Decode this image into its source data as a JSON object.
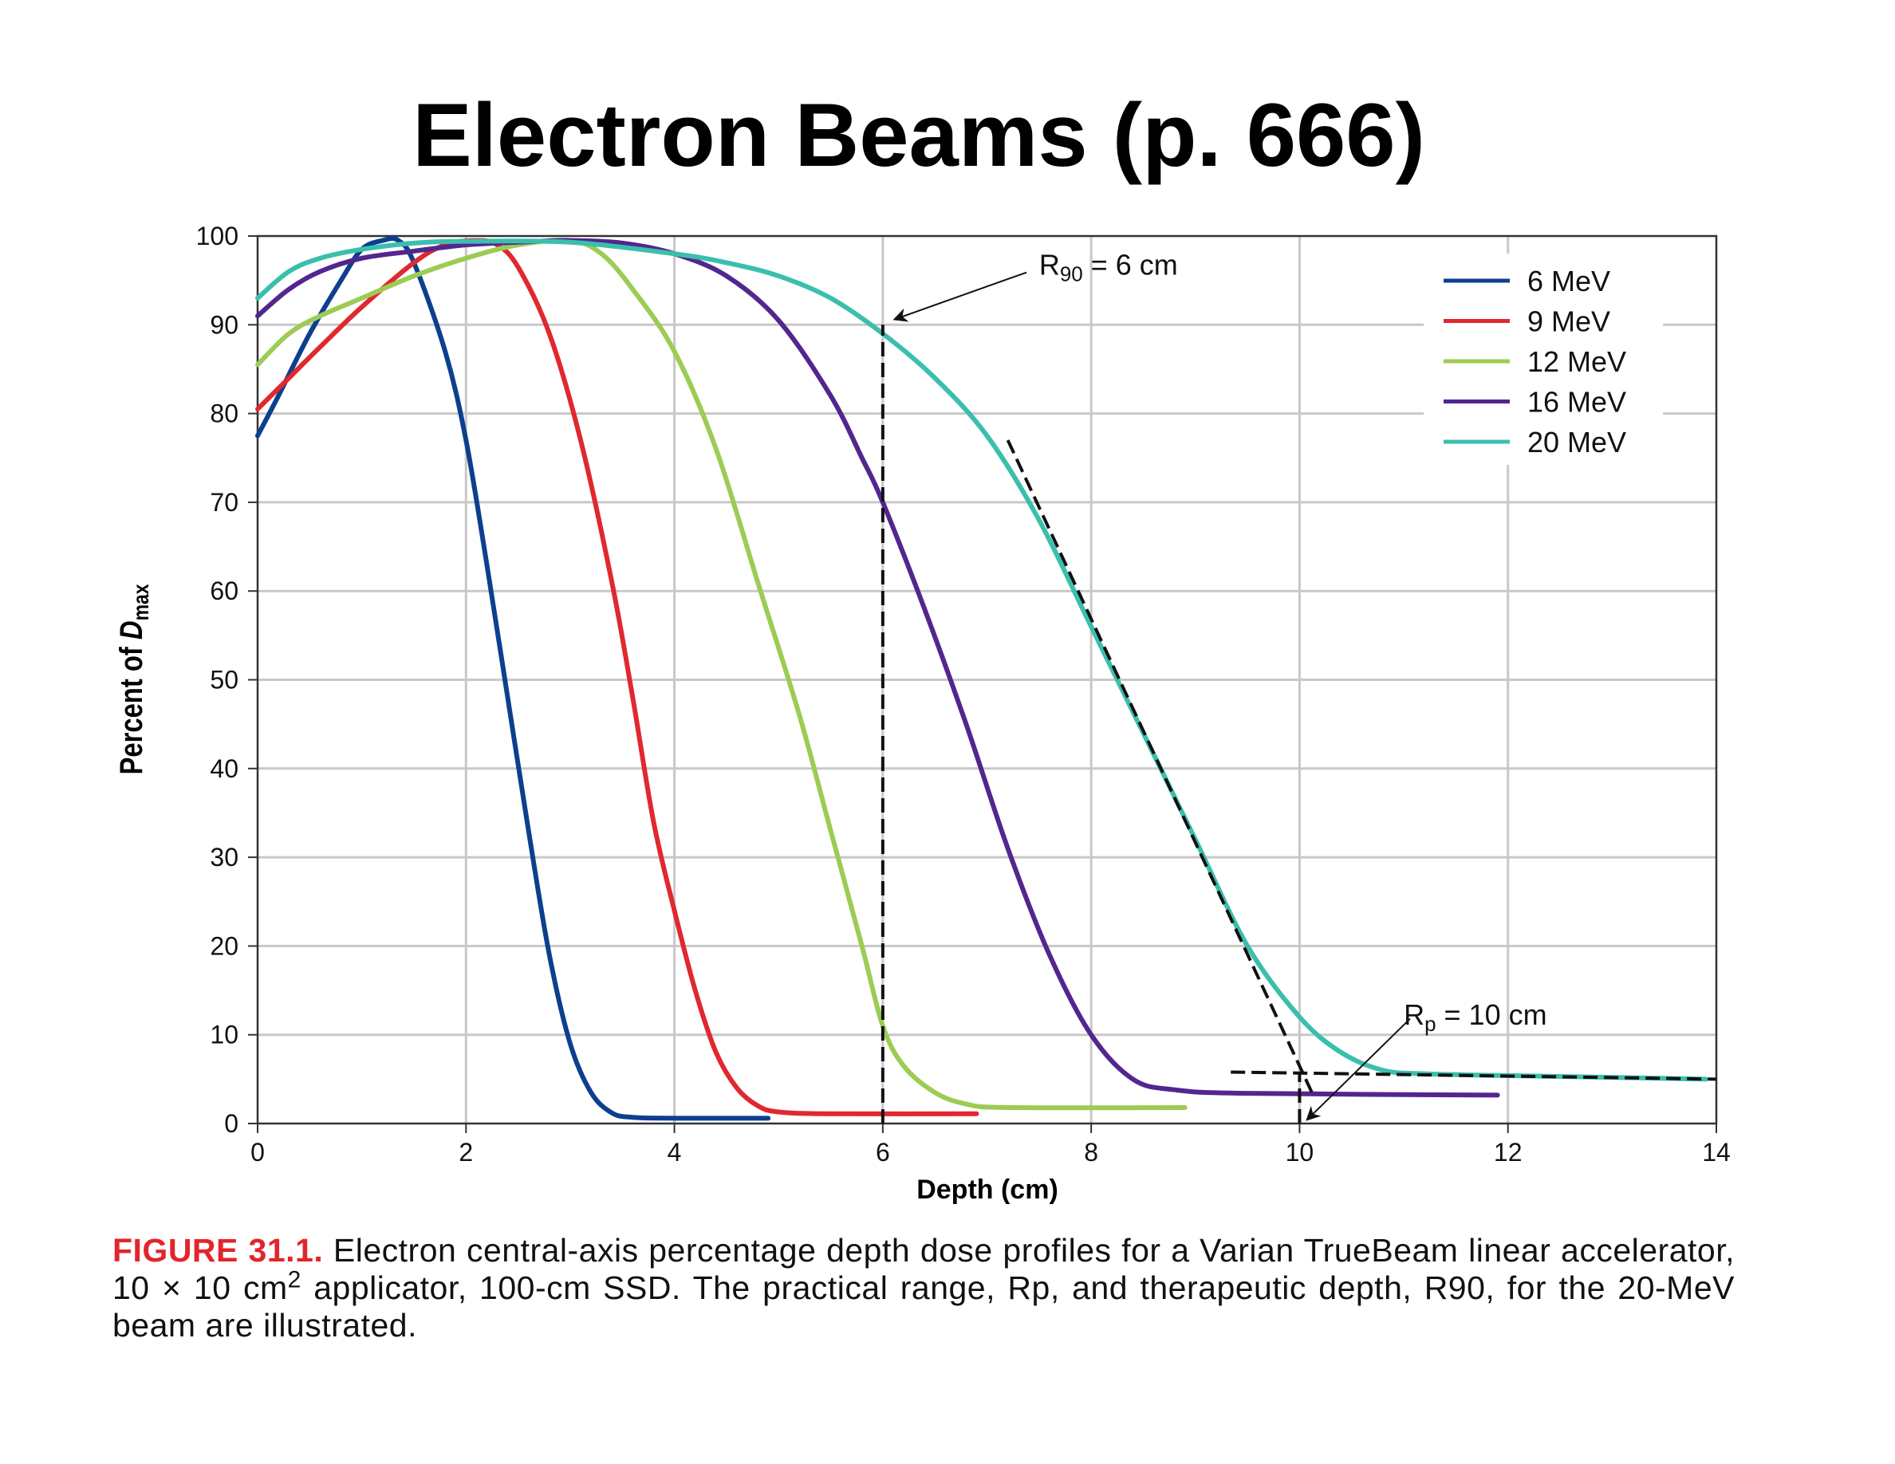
{
  "title": "Electron Beams (p. 666)",
  "caption": {
    "figure_label": "FIGURE 31.1.",
    "text_part1": " Electron central-axis percentage depth dose profiles for a Varian TrueBeam linear accelerator, 10 × 10 cm",
    "superscript": "2",
    "text_part2": " applicator, 100-cm SSD. The practical range, Rp, and therapeutic depth, R90, for the 20-MeV beam are illustrated."
  },
  "colors": {
    "figure_label": "#e3242b"
  },
  "chart_data": {
    "type": "line",
    "title": "",
    "xlabel": "Depth (cm)",
    "ylabel_prefix": "Percent of ",
    "ylabel_symbol": "D",
    "ylabel_subscript": "max",
    "xlim": [
      0,
      14
    ],
    "ylim": [
      0,
      100
    ],
    "xticks": [
      0,
      2,
      4,
      6,
      8,
      10,
      12,
      14
    ],
    "yticks": [
      0,
      10,
      20,
      30,
      40,
      50,
      60,
      70,
      80,
      90,
      100
    ],
    "grid": true,
    "legend_position": "top-right",
    "series": [
      {
        "name": "6 MeV",
        "color": "#0d3f8f",
        "points": [
          [
            0,
            77.5
          ],
          [
            0.2,
            82
          ],
          [
            0.5,
            89
          ],
          [
            0.8,
            95
          ],
          [
            1.0,
            98.5
          ],
          [
            1.2,
            99.5
          ],
          [
            1.35,
            99.5
          ],
          [
            1.5,
            97
          ],
          [
            1.8,
            87
          ],
          [
            2.0,
            77
          ],
          [
            2.2,
            63
          ],
          [
            2.4,
            48
          ],
          [
            2.6,
            33
          ],
          [
            2.8,
            19
          ],
          [
            3.0,
            9
          ],
          [
            3.2,
            3.5
          ],
          [
            3.4,
            1.2
          ],
          [
            3.6,
            0.7
          ],
          [
            4.0,
            0.6
          ],
          [
            4.9,
            0.6
          ]
        ]
      },
      {
        "name": "9 MeV",
        "color": "#e0282e",
        "points": [
          [
            0,
            80.5
          ],
          [
            0.3,
            84
          ],
          [
            0.6,
            87.5
          ],
          [
            1.0,
            92
          ],
          [
            1.5,
            97
          ],
          [
            1.8,
            99
          ],
          [
            2.1,
            99.5
          ],
          [
            2.3,
            99
          ],
          [
            2.5,
            96.5
          ],
          [
            2.8,
            89
          ],
          [
            3.1,
            77
          ],
          [
            3.4,
            61
          ],
          [
            3.6,
            48
          ],
          [
            3.8,
            34
          ],
          [
            4.0,
            24
          ],
          [
            4.2,
            15
          ],
          [
            4.4,
            8
          ],
          [
            4.6,
            4
          ],
          [
            4.8,
            2
          ],
          [
            5.0,
            1.3
          ],
          [
            5.5,
            1.1
          ],
          [
            6.9,
            1.1
          ]
        ]
      },
      {
        "name": "12 MeV",
        "color": "#9ccc54",
        "points": [
          [
            0,
            85.5
          ],
          [
            0.3,
            89
          ],
          [
            0.6,
            91
          ],
          [
            1.0,
            93
          ],
          [
            1.5,
            95.5
          ],
          [
            2.0,
            97.5
          ],
          [
            2.5,
            99
          ],
          [
            3.0,
            99.5
          ],
          [
            3.3,
            98
          ],
          [
            3.6,
            94
          ],
          [
            4.0,
            87
          ],
          [
            4.4,
            76
          ],
          [
            4.8,
            61
          ],
          [
            5.2,
            46
          ],
          [
            5.5,
            33
          ],
          [
            5.8,
            20
          ],
          [
            6.0,
            11
          ],
          [
            6.2,
            6.5
          ],
          [
            6.5,
            3.5
          ],
          [
            6.8,
            2.2
          ],
          [
            7.2,
            1.8
          ],
          [
            8.9,
            1.8
          ]
        ]
      },
      {
        "name": "16 MeV",
        "color": "#53268f",
        "points": [
          [
            0,
            91
          ],
          [
            0.3,
            94
          ],
          [
            0.6,
            96
          ],
          [
            1.0,
            97.5
          ],
          [
            1.5,
            98.3
          ],
          [
            2.0,
            99
          ],
          [
            2.5,
            99.3
          ],
          [
            3.0,
            99.5
          ],
          [
            3.5,
            99.2
          ],
          [
            4.0,
            98
          ],
          [
            4.5,
            95.5
          ],
          [
            5.0,
            90.5
          ],
          [
            5.5,
            82
          ],
          [
            5.8,
            75
          ],
          [
            6.0,
            70
          ],
          [
            6.4,
            58
          ],
          [
            6.8,
            45
          ],
          [
            7.2,
            31
          ],
          [
            7.6,
            19
          ],
          [
            8.0,
            10
          ],
          [
            8.4,
            5
          ],
          [
            8.8,
            3.8
          ],
          [
            9.5,
            3.4
          ],
          [
            11.9,
            3.2
          ]
        ]
      },
      {
        "name": "20 MeV",
        "color": "#3bbfad",
        "points": [
          [
            0,
            93
          ],
          [
            0.3,
            96
          ],
          [
            0.6,
            97.5
          ],
          [
            1.0,
            98.5
          ],
          [
            1.5,
            99.2
          ],
          [
            2.0,
            99.4
          ],
          [
            3.0,
            99.3
          ],
          [
            4.0,
            98
          ],
          [
            4.5,
            97
          ],
          [
            5.0,
            95.5
          ],
          [
            5.5,
            93
          ],
          [
            6.0,
            89
          ],
          [
            6.5,
            84
          ],
          [
            7.0,
            77.5
          ],
          [
            7.5,
            68
          ],
          [
            8.0,
            56
          ],
          [
            8.5,
            44
          ],
          [
            9.0,
            32
          ],
          [
            9.5,
            20
          ],
          [
            10.0,
            12
          ],
          [
            10.4,
            8
          ],
          [
            10.8,
            6
          ],
          [
            11.2,
            5.6
          ],
          [
            12,
            5.4
          ],
          [
            13,
            5.2
          ],
          [
            13.9,
            5
          ]
        ]
      }
    ],
    "reference_lines": [
      {
        "kind": "r90-vertical",
        "from": [
          6,
          0
        ],
        "to": [
          6,
          90
        ]
      },
      {
        "kind": "falloff-tangent",
        "from": [
          7.2,
          77
        ],
        "to": [
          10.13,
          3.2
        ]
      },
      {
        "kind": "bremsstrahlung-tail",
        "from": [
          9.34,
          5.8
        ],
        "to": [
          14,
          5
        ]
      },
      {
        "kind": "rp-vertical",
        "from": [
          10,
          0
        ],
        "to": [
          10,
          5.6
        ]
      }
    ],
    "annotations": [
      {
        "name": "r90",
        "label": "R",
        "sub": "90",
        "suffix": " = 6 cm",
        "text_at": [
          7.5,
          96
        ],
        "arrow_from": [
          7.38,
          95.9
        ],
        "arrow_to": [
          6.11,
          90.6
        ]
      },
      {
        "name": "rp",
        "label": "R",
        "sub": "p",
        "suffix": " = 10 cm",
        "text_at": [
          11.0,
          11.5
        ],
        "arrow_from": [
          11.06,
          11.8
        ],
        "arrow_to": [
          10.07,
          0.4
        ]
      }
    ]
  }
}
